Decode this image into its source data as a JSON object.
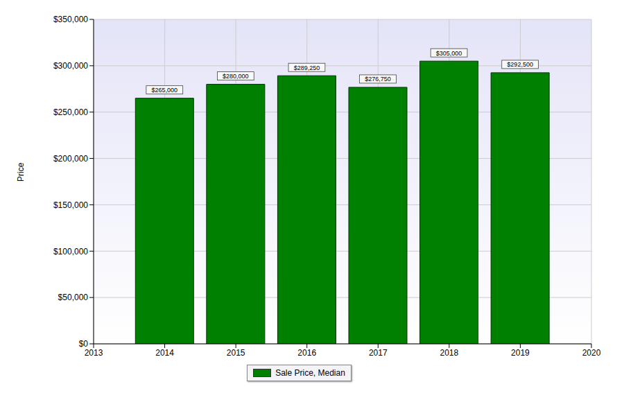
{
  "chart_data": {
    "type": "bar",
    "x": [
      2014,
      2015,
      2016,
      2017,
      2018,
      2019
    ],
    "series": [
      {
        "name": "Sale Price, Median",
        "color": "#008000",
        "values": [
          265000,
          280000,
          289250,
          276750,
          305000,
          292500
        ],
        "value_labels": [
          "$265,000",
          "$280,000",
          "$289,250",
          "$276,750",
          "$305,000",
          "$292,500"
        ]
      }
    ],
    "y_label": "Price",
    "xlim": [
      2013,
      2020
    ],
    "xticks": [
      2013,
      2014,
      2015,
      2016,
      2017,
      2018,
      2019,
      2020
    ],
    "ylim": [
      0,
      350000
    ],
    "yticks": [
      {
        "value": 0,
        "label": "$0"
      },
      {
        "value": 50000,
        "label": "$50,000"
      },
      {
        "value": 100000,
        "label": "$100,000"
      },
      {
        "value": 150000,
        "label": "$150,000"
      },
      {
        "value": 200000,
        "label": "$200,000"
      },
      {
        "value": 250000,
        "label": "$250,000"
      },
      {
        "value": 300000,
        "label": "$300,000"
      },
      {
        "value": 350000,
        "label": "$350,000"
      }
    ],
    "grid": true,
    "legend": "bottom",
    "data_labels": true
  }
}
